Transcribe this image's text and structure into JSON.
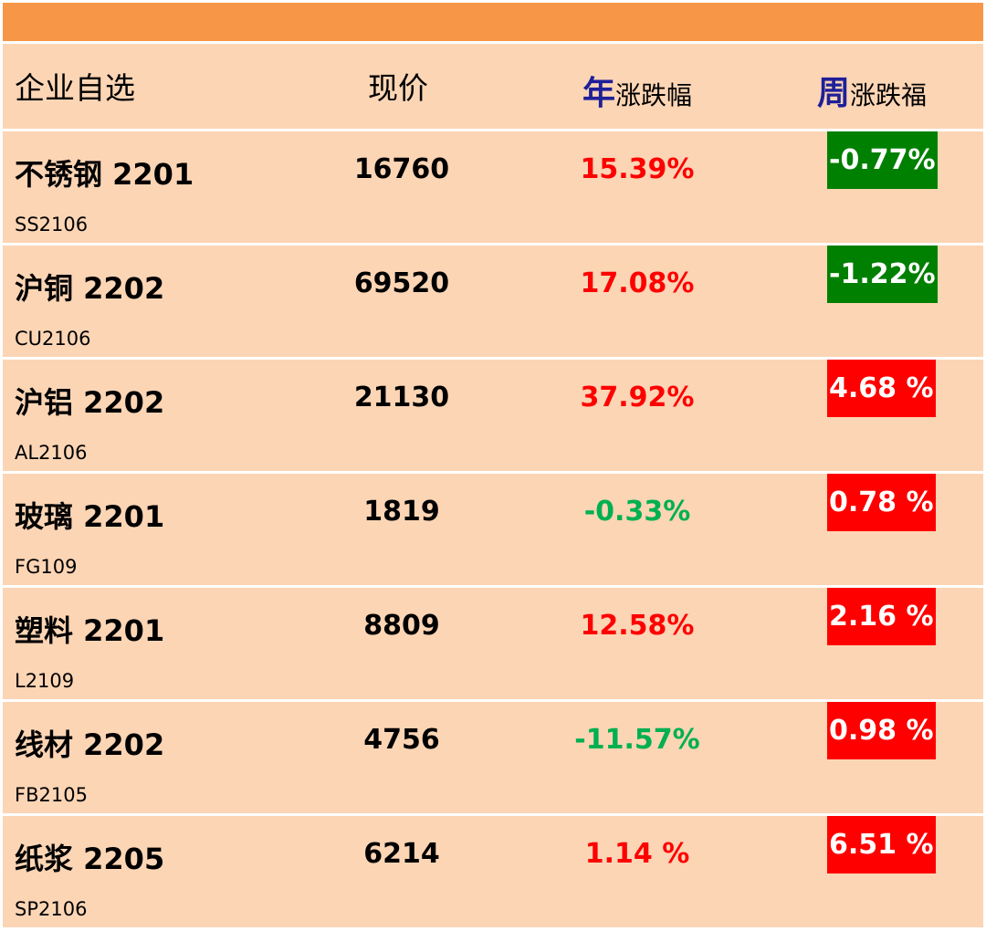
{
  "header": {
    "name": "企业自选",
    "price": "现价",
    "year_accent": "年",
    "year_label": "涨跌幅",
    "week_accent": "周",
    "week_label": "涨跌福"
  },
  "colors": {
    "top_bar": "#f79646",
    "row_bg": "#fcd5b5",
    "up": "#ff0000",
    "down_text": "#00b050",
    "down_bg": "#008000",
    "accent": "#1f1f99"
  },
  "rows": [
    {
      "name": "不锈钢 2201",
      "code": "SS2106",
      "price": "16760",
      "year": "15.39%",
      "year_dir": "up",
      "week": "-0.77%",
      "week_dir": "down"
    },
    {
      "name": "沪铜 2202",
      "code": "CU2106",
      "price": "69520",
      "year": "17.08%",
      "year_dir": "up",
      "week": "-1.22%",
      "week_dir": "down"
    },
    {
      "name": "沪铝 2202",
      "code": "AL2106",
      "price": "21130",
      "year": "37.92%",
      "year_dir": "up",
      "week": "4.68 %",
      "week_dir": "up"
    },
    {
      "name": "玻璃 2201",
      "code": "FG109",
      "price": "1819",
      "year": "-0.33%",
      "year_dir": "down",
      "week": "0.78 %",
      "week_dir": "up"
    },
    {
      "name": "塑料 2201",
      "code": "L2109",
      "price": "8809",
      "year": "12.58%",
      "year_dir": "up",
      "week": "2.16 %",
      "week_dir": "up"
    },
    {
      "name": "线材 2202",
      "code": "FB2105",
      "price": "4756",
      "year": "-11.57%",
      "year_dir": "down",
      "week": "0.98 %",
      "week_dir": "up"
    },
    {
      "name": "纸浆 2205",
      "code": "SP2106",
      "price": "6214",
      "year": "1.14 %",
      "year_dir": "up",
      "week": "6.51 %",
      "week_dir": "up"
    }
  ]
}
